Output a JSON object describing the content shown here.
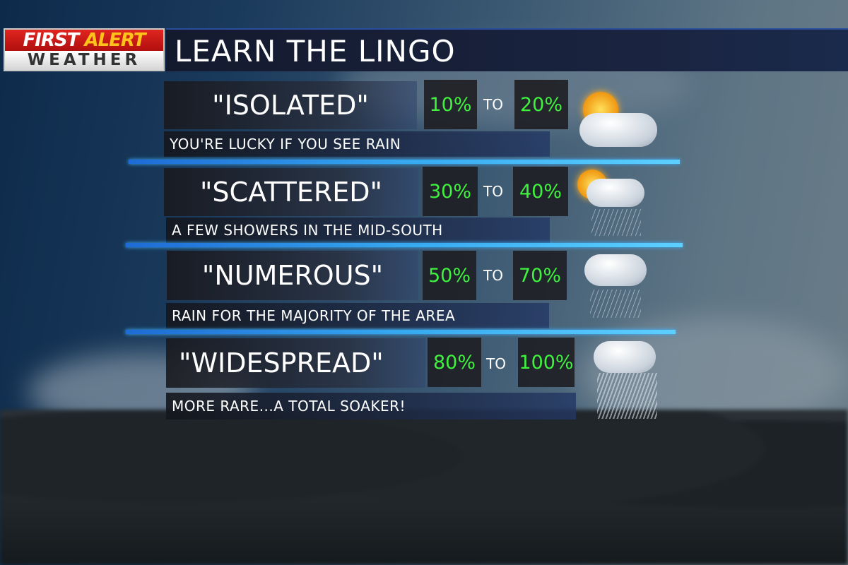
{
  "logo": {
    "line1a": "FIRST",
    "line1b": "ALERT",
    "line2": "WEATHER"
  },
  "title": "LEARN THE LINGO",
  "connector": "TO",
  "rows": [
    {
      "term": "\"ISOLATED\"",
      "low": "10%",
      "high": "20%",
      "description": "YOU'RE LUCKY IF YOU SEE RAIN",
      "icon": "sun-cloud-icon"
    },
    {
      "term": "\"SCATTERED\"",
      "low": "30%",
      "high": "40%",
      "description": "A FEW SHOWERS IN THE MID-SOUTH",
      "icon": "sun-cloud-rain-icon"
    },
    {
      "term": "\"NUMEROUS\"",
      "low": "50%",
      "high": "70%",
      "description": "RAIN FOR THE MAJORITY OF THE AREA",
      "icon": "cloud-rain-icon"
    },
    {
      "term": "\"WIDESPREAD\"",
      "low": "80%",
      "high": "100%",
      "description": "MORE RARE...A TOTAL SOAKER!",
      "icon": "cloud-heavy-rain-icon"
    }
  ],
  "colors": {
    "percent": "#3ef23e",
    "accent_line": "#36a8f0",
    "logo_red": "#e0251f",
    "logo_yellow": "#ffc21a"
  }
}
